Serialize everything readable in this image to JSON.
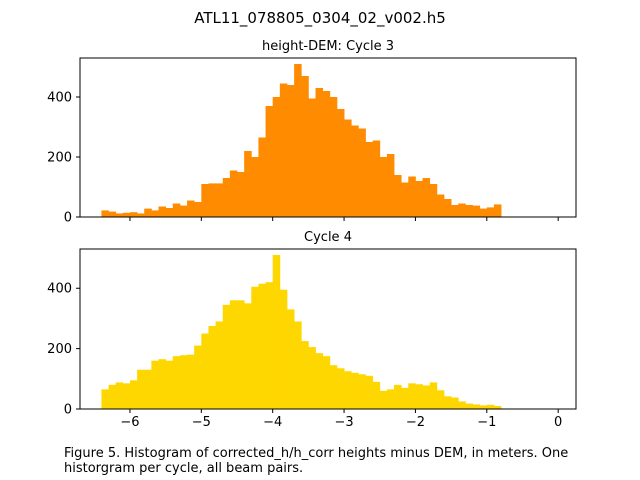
{
  "figure": {
    "suptitle": "ATL11_078805_0304_02_v002.h5",
    "caption": "Figure 5. Histogram of corrected_h/h_corr heights minus DEM, in meters. One historgram per cycle, all beam pairs."
  },
  "chart_data": [
    {
      "type": "bar",
      "title": "height-DEM: Cycle 3",
      "color": "#ff8c00",
      "bin_start": -6.4,
      "bin_width": 0.1,
      "xlim": [
        -6.7,
        0.25
      ],
      "ylim": [
        0,
        530
      ],
      "xticks": [
        -6,
        -5,
        -4,
        -3,
        -2,
        -1,
        0
      ],
      "xtick_labels_visible": false,
      "yticks": [
        0,
        200,
        400
      ],
      "ytick_labels": [
        "0",
        "200",
        "400"
      ],
      "values": [
        22,
        18,
        12,
        14,
        16,
        12,
        28,
        22,
        35,
        30,
        45,
        38,
        55,
        50,
        110,
        112,
        112,
        130,
        155,
        150,
        220,
        200,
        265,
        370,
        400,
        445,
        440,
        510,
        470,
        395,
        430,
        420,
        400,
        360,
        325,
        305,
        295,
        250,
        255,
        200,
        210,
        140,
        115,
        135,
        120,
        130,
        110,
        75,
        60,
        40,
        45,
        40,
        38,
        28,
        32,
        42
      ]
    },
    {
      "type": "bar",
      "title": "Cycle 4",
      "color": "#ffd700",
      "bin_start": -6.4,
      "bin_width": 0.1,
      "xlim": [
        -6.7,
        0.25
      ],
      "ylim": [
        0,
        530
      ],
      "xticks": [
        -6,
        -5,
        -4,
        -3,
        -2,
        -1,
        0
      ],
      "xtick_labels": [
        "−6",
        "−5",
        "−4",
        "−3",
        "−2",
        "−1",
        "0"
      ],
      "yticks": [
        0,
        200,
        400
      ],
      "ytick_labels": [
        "0",
        "200",
        "400"
      ],
      "values": [
        65,
        80,
        88,
        85,
        95,
        130,
        130,
        160,
        165,
        160,
        175,
        178,
        180,
        210,
        250,
        275,
        290,
        345,
        360,
        360,
        350,
        405,
        415,
        420,
        510,
        395,
        330,
        290,
        225,
        205,
        185,
        175,
        145,
        135,
        125,
        120,
        115,
        110,
        90,
        60,
        65,
        80,
        70,
        85,
        82,
        78,
        88,
        62,
        42,
        38,
        25,
        18,
        15,
        12,
        14,
        10
      ]
    }
  ]
}
